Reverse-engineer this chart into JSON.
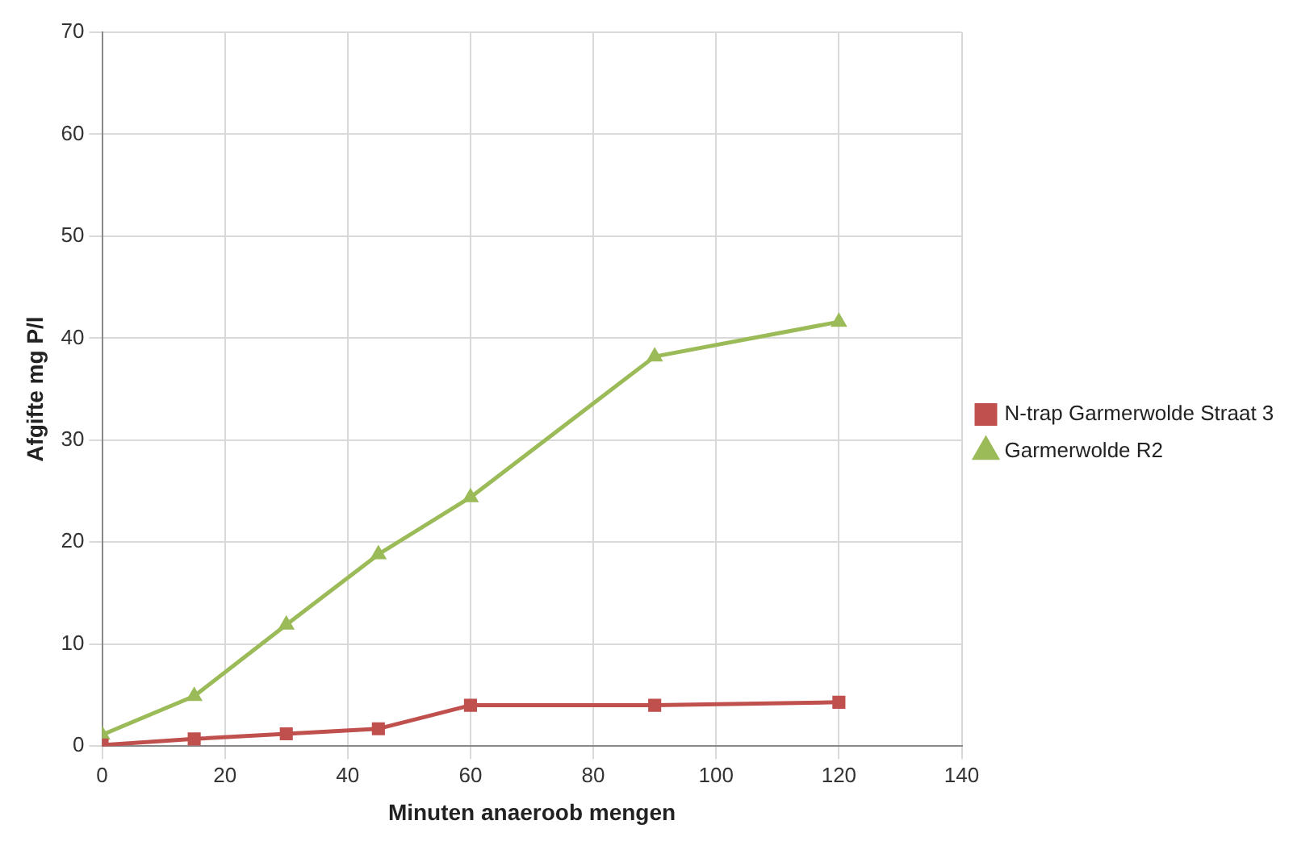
{
  "chart_data": {
    "type": "line",
    "xlabel": "Minuten anaeroob mengen",
    "ylabel": "Afgifte mg P/l",
    "x": [
      0,
      15,
      30,
      45,
      60,
      90,
      120
    ],
    "series": [
      {
        "name": "N-trap Garmerwolde Straat 3",
        "color": "#c0504d",
        "marker": "square",
        "values": [
          0.1,
          0.7,
          1.2,
          1.7,
          4.0,
          4.0,
          4.3
        ]
      },
      {
        "name": "Garmerwolde R2",
        "color": "#9bbb59",
        "marker": "triangle",
        "values": [
          1.1,
          4.9,
          11.9,
          18.8,
          24.4,
          38.2,
          41.6
        ]
      }
    ],
    "xlim": [
      0,
      140
    ],
    "xticks": [
      0,
      20,
      40,
      60,
      80,
      100,
      120,
      140
    ],
    "ylim": [
      0,
      70
    ],
    "yticks": [
      0,
      10,
      20,
      30,
      40,
      50,
      60,
      70
    ],
    "grid": true,
    "legend": "right",
    "line_style": "solid"
  }
}
